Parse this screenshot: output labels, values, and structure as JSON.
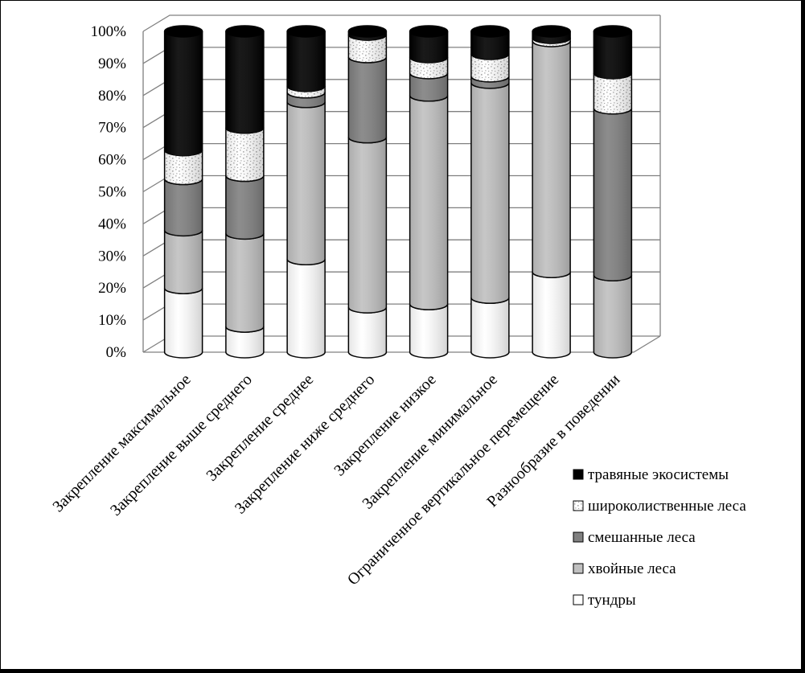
{
  "chart_data": {
    "type": "bar",
    "stacked": true,
    "normalized": true,
    "categories": [
      "Закрепление максимальное",
      "Закрепление выше среднего",
      "Закрепление среднее",
      "Закрепление ниже среднего",
      "Закрепление низкое",
      "Закрепление минимальное",
      "Ограниченное вертикальное перемещение",
      "Разнообразие в поведении"
    ],
    "series": [
      {
        "name": "тундры",
        "color": "#ffffff",
        "pattern": "plain",
        "values": [
          20,
          8,
          29,
          14,
          15,
          17,
          25,
          0
        ]
      },
      {
        "name": "хвойные леса",
        "color": "#c0c0c0",
        "pattern": "plain",
        "values": [
          18,
          29,
          49,
          53,
          65,
          67,
          72,
          24
        ]
      },
      {
        "name": "смешанные леса",
        "color": "#808080",
        "pattern": "plain",
        "values": [
          16,
          18,
          3,
          25,
          7,
          2,
          0,
          52
        ]
      },
      {
        "name": "широколиственные леса",
        "color": "#ffffff",
        "pattern": "speckle",
        "values": [
          9,
          15,
          2,
          7,
          5,
          7,
          1,
          11
        ]
      },
      {
        "name": "травяные экосистемы",
        "color": "#000000",
        "pattern": "plain",
        "values": [
          37,
          30,
          17,
          1,
          8,
          7,
          2,
          13
        ]
      }
    ],
    "y_ticks": [
      "0%",
      "10%",
      "20%",
      "30%",
      "40%",
      "50%",
      "60%",
      "70%",
      "80%",
      "90%",
      "100%"
    ],
    "ylim": [
      0,
      100
    ],
    "grid": true,
    "legend_position": "bottom-right",
    "legend_order": [
      "травяные экосистемы",
      "широколиственные леса",
      "смешанные леса",
      "хвойные леса",
      "тундры"
    ]
  }
}
